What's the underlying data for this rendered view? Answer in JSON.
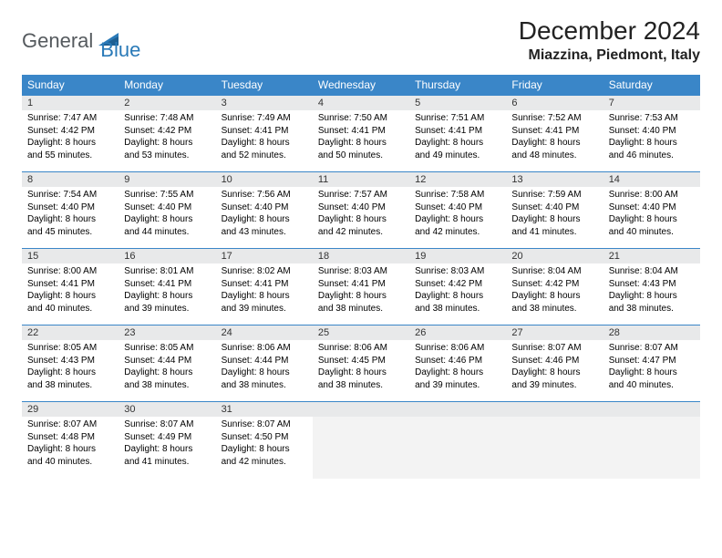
{
  "logo": {
    "general": "General",
    "blue": "Blue"
  },
  "title": "December 2024",
  "location": "Miazzina, Piedmont, Italy",
  "header_color": "#3a86c8",
  "header_text_color": "#ffffff",
  "daynum_bg": "#e8e9ea",
  "border_color": "#3a86c8",
  "weekdays": [
    "Sunday",
    "Monday",
    "Tuesday",
    "Wednesday",
    "Thursday",
    "Friday",
    "Saturday"
  ],
  "weeks": [
    [
      {
        "n": "1",
        "sr": "7:47 AM",
        "ss": "4:42 PM",
        "dl": "8 hours and 55 minutes."
      },
      {
        "n": "2",
        "sr": "7:48 AM",
        "ss": "4:42 PM",
        "dl": "8 hours and 53 minutes."
      },
      {
        "n": "3",
        "sr": "7:49 AM",
        "ss": "4:41 PM",
        "dl": "8 hours and 52 minutes."
      },
      {
        "n": "4",
        "sr": "7:50 AM",
        "ss": "4:41 PM",
        "dl": "8 hours and 50 minutes."
      },
      {
        "n": "5",
        "sr": "7:51 AM",
        "ss": "4:41 PM",
        "dl": "8 hours and 49 minutes."
      },
      {
        "n": "6",
        "sr": "7:52 AM",
        "ss": "4:41 PM",
        "dl": "8 hours and 48 minutes."
      },
      {
        "n": "7",
        "sr": "7:53 AM",
        "ss": "4:40 PM",
        "dl": "8 hours and 46 minutes."
      }
    ],
    [
      {
        "n": "8",
        "sr": "7:54 AM",
        "ss": "4:40 PM",
        "dl": "8 hours and 45 minutes."
      },
      {
        "n": "9",
        "sr": "7:55 AM",
        "ss": "4:40 PM",
        "dl": "8 hours and 44 minutes."
      },
      {
        "n": "10",
        "sr": "7:56 AM",
        "ss": "4:40 PM",
        "dl": "8 hours and 43 minutes."
      },
      {
        "n": "11",
        "sr": "7:57 AM",
        "ss": "4:40 PM",
        "dl": "8 hours and 42 minutes."
      },
      {
        "n": "12",
        "sr": "7:58 AM",
        "ss": "4:40 PM",
        "dl": "8 hours and 42 minutes."
      },
      {
        "n": "13",
        "sr": "7:59 AM",
        "ss": "4:40 PM",
        "dl": "8 hours and 41 minutes."
      },
      {
        "n": "14",
        "sr": "8:00 AM",
        "ss": "4:40 PM",
        "dl": "8 hours and 40 minutes."
      }
    ],
    [
      {
        "n": "15",
        "sr": "8:00 AM",
        "ss": "4:41 PM",
        "dl": "8 hours and 40 minutes."
      },
      {
        "n": "16",
        "sr": "8:01 AM",
        "ss": "4:41 PM",
        "dl": "8 hours and 39 minutes."
      },
      {
        "n": "17",
        "sr": "8:02 AM",
        "ss": "4:41 PM",
        "dl": "8 hours and 39 minutes."
      },
      {
        "n": "18",
        "sr": "8:03 AM",
        "ss": "4:41 PM",
        "dl": "8 hours and 38 minutes."
      },
      {
        "n": "19",
        "sr": "8:03 AM",
        "ss": "4:42 PM",
        "dl": "8 hours and 38 minutes."
      },
      {
        "n": "20",
        "sr": "8:04 AM",
        "ss": "4:42 PM",
        "dl": "8 hours and 38 minutes."
      },
      {
        "n": "21",
        "sr": "8:04 AM",
        "ss": "4:43 PM",
        "dl": "8 hours and 38 minutes."
      }
    ],
    [
      {
        "n": "22",
        "sr": "8:05 AM",
        "ss": "4:43 PM",
        "dl": "8 hours and 38 minutes."
      },
      {
        "n": "23",
        "sr": "8:05 AM",
        "ss": "4:44 PM",
        "dl": "8 hours and 38 minutes."
      },
      {
        "n": "24",
        "sr": "8:06 AM",
        "ss": "4:44 PM",
        "dl": "8 hours and 38 minutes."
      },
      {
        "n": "25",
        "sr": "8:06 AM",
        "ss": "4:45 PM",
        "dl": "8 hours and 38 minutes."
      },
      {
        "n": "26",
        "sr": "8:06 AM",
        "ss": "4:46 PM",
        "dl": "8 hours and 39 minutes."
      },
      {
        "n": "27",
        "sr": "8:07 AM",
        "ss": "4:46 PM",
        "dl": "8 hours and 39 minutes."
      },
      {
        "n": "28",
        "sr": "8:07 AM",
        "ss": "4:47 PM",
        "dl": "8 hours and 40 minutes."
      }
    ],
    [
      {
        "n": "29",
        "sr": "8:07 AM",
        "ss": "4:48 PM",
        "dl": "8 hours and 40 minutes."
      },
      {
        "n": "30",
        "sr": "8:07 AM",
        "ss": "4:49 PM",
        "dl": "8 hours and 41 minutes."
      },
      {
        "n": "31",
        "sr": "8:07 AM",
        "ss": "4:50 PM",
        "dl": "8 hours and 42 minutes."
      },
      null,
      null,
      null,
      null
    ]
  ],
  "labels": {
    "sunrise": "Sunrise:",
    "sunset": "Sunset:",
    "daylight": "Daylight:"
  }
}
